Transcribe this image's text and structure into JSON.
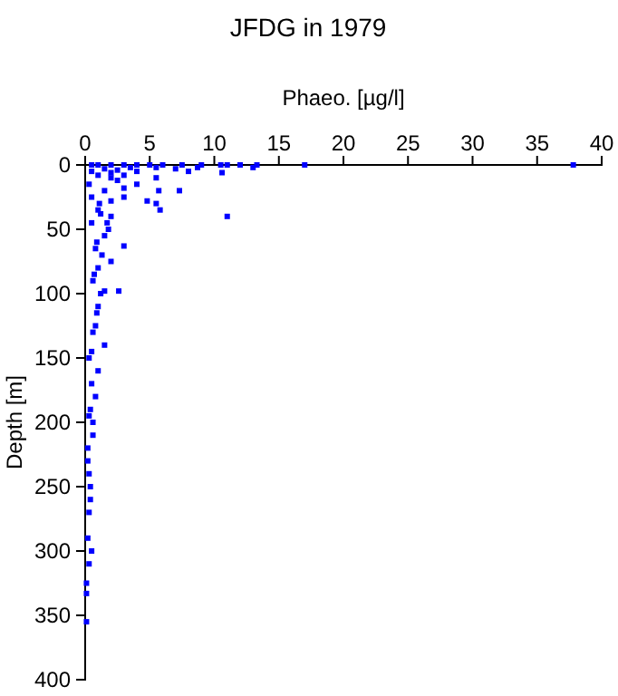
{
  "chart_data": {
    "type": "scatter",
    "title": "JFDG in 1979",
    "xlabel": "Phaeo. [µg/l]",
    "ylabel": "Depth [m]",
    "xlim": [
      0,
      40
    ],
    "xticks": [
      0,
      5,
      10,
      15,
      20,
      25,
      30,
      35,
      40
    ],
    "ylim": [
      400,
      0
    ],
    "yticks": [
      0,
      50,
      100,
      150,
      200,
      250,
      300,
      350,
      400
    ],
    "marker": "square",
    "series": [
      {
        "color": "#0000ff",
        "x": [
          37.8,
          17,
          13.3,
          13,
          12,
          11,
          10.5,
          10.6,
          9,
          8.7,
          8,
          7.5,
          7,
          6,
          5.5,
          5,
          4,
          3,
          2,
          1,
          0.5,
          4,
          3,
          2,
          5.5,
          4,
          3,
          2.5,
          1.5,
          7.3,
          5.7,
          3,
          2,
          4.8,
          5.5,
          5.8,
          11,
          1,
          2,
          3,
          1.8,
          1.5,
          2,
          1,
          0.6,
          1.5,
          2.6,
          1,
          0.8,
          1.5,
          0.5,
          1,
          0.8,
          0.3,
          0.6,
          0.2,
          0.4,
          0.3,
          0.2,
          0.3,
          0.1,
          0.1,
          0.1,
          0.5,
          0.4,
          0.3,
          0.2,
          0.5,
          0.3,
          0.6,
          0.9,
          1.2,
          0.7,
          1.3,
          0.9,
          0.5,
          1.7,
          1.1,
          0.3,
          0.5,
          1.5,
          2.5,
          3.5,
          1,
          2,
          0.5,
          1.2,
          0.8,
          0.4,
          0.6
        ],
        "values": [
          0,
          0,
          0,
          2,
          0,
          0,
          0,
          6,
          0,
          2,
          5,
          0,
          3,
          0,
          2,
          0,
          0,
          0,
          0,
          0,
          0,
          5,
          8,
          10,
          10,
          15,
          18,
          12,
          20,
          20,
          20,
          25,
          28,
          28,
          30,
          35,
          40,
          35,
          40,
          63,
          50,
          55,
          75,
          80,
          90,
          98,
          98,
          110,
          125,
          140,
          145,
          160,
          180,
          195,
          210,
          230,
          250,
          270,
          290,
          310,
          325,
          333,
          355,
          300,
          260,
          240,
          220,
          170,
          150,
          130,
          115,
          100,
          85,
          70,
          60,
          45,
          45,
          30,
          15,
          5,
          3,
          4,
          2,
          8,
          6,
          25,
          38,
          65,
          190,
          200
        ]
      }
    ]
  }
}
